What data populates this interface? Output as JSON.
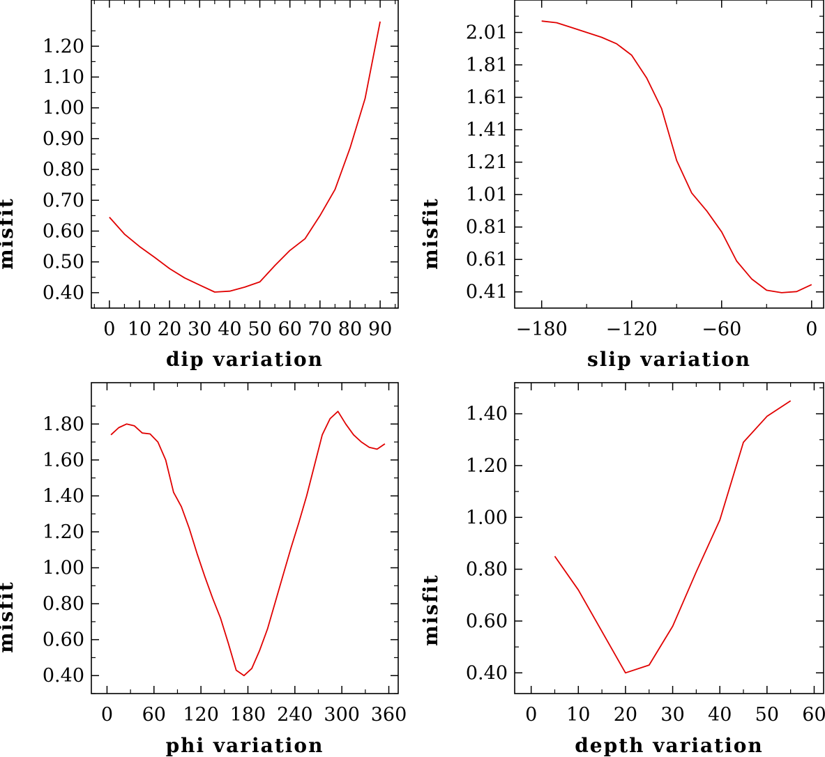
{
  "colors": {
    "line": "#e00000",
    "axis": "#000000",
    "background": "#ffffff"
  },
  "chart_data": [
    {
      "type": "line",
      "xlabel": "dip variation",
      "ylabel": "misfit",
      "xlim": [
        -6,
        96
      ],
      "ylim": [
        0.35,
        1.35
      ],
      "xticks": [
        0,
        10,
        20,
        30,
        40,
        50,
        60,
        70,
        80,
        90
      ],
      "xtick_labels": [
        "0",
        "10",
        "20",
        "30",
        "40",
        "50",
        "60",
        "70",
        "80",
        "90"
      ],
      "yticks": [
        0.4,
        0.5,
        0.6,
        0.7,
        0.8,
        0.9,
        1.0,
        1.1,
        1.2
      ],
      "ytick_labels": [
        "0.40",
        "0.50",
        "0.60",
        "0.70",
        "0.80",
        "0.90",
        "1.00",
        "1.10",
        "1.20"
      ],
      "x": [
        0,
        5,
        10,
        15,
        20,
        25,
        30,
        35,
        40,
        45,
        50,
        55,
        60,
        65,
        70,
        75,
        80,
        85,
        90
      ],
      "y": [
        0.645,
        0.59,
        0.55,
        0.515,
        0.478,
        0.448,
        0.425,
        0.402,
        0.405,
        0.418,
        0.435,
        0.488,
        0.537,
        0.575,
        0.65,
        0.735,
        0.87,
        1.03,
        1.28
      ]
    },
    {
      "type": "line",
      "xlabel": "slip variation",
      "ylabel": "misfit",
      "xlim": [
        -198,
        8
      ],
      "ylim": [
        0.31,
        2.21
      ],
      "xticks": [
        -180,
        -120,
        -60,
        0
      ],
      "xtick_labels": [
        "−180",
        "−120",
        "−60",
        "0"
      ],
      "yticks": [
        0.41,
        0.61,
        0.81,
        1.01,
        1.21,
        1.41,
        1.61,
        1.81,
        2.01
      ],
      "ytick_labels": [
        "0.41",
        "0.61",
        "0.81",
        "1.01",
        "1.21",
        "1.41",
        "1.61",
        "1.81",
        "2.01"
      ],
      "x": [
        -180,
        -170,
        -160,
        -150,
        -140,
        -130,
        -120,
        -110,
        -100,
        -90,
        -80,
        -70,
        -60,
        -50,
        -40,
        -30,
        -20,
        -10,
        0
      ],
      "y": [
        2.08,
        2.07,
        2.04,
        2.01,
        1.98,
        1.94,
        1.87,
        1.73,
        1.54,
        1.22,
        1.02,
        0.91,
        0.78,
        0.6,
        0.49,
        0.42,
        0.405,
        0.412,
        0.455
      ]
    },
    {
      "type": "line",
      "xlabel": "phi variation",
      "ylabel": "misfit",
      "xlim": [
        -20,
        372
      ],
      "ylim": [
        0.3,
        2.03
      ],
      "xticks": [
        0,
        60,
        120,
        180,
        240,
        300,
        360
      ],
      "xtick_labels": [
        "0",
        "60",
        "120",
        "180",
        "240",
        "300",
        "360"
      ],
      "yticks": [
        0.4,
        0.6,
        0.8,
        1.0,
        1.2,
        1.4,
        1.6,
        1.8
      ],
      "ytick_labels": [
        "0.40",
        "0.60",
        "0.80",
        "1.00",
        "1.20",
        "1.40",
        "1.60",
        "1.80"
      ],
      "x": [
        5,
        15,
        25,
        35,
        45,
        55,
        65,
        75,
        85,
        95,
        105,
        115,
        125,
        135,
        145,
        155,
        165,
        175,
        185,
        195,
        205,
        215,
        225,
        235,
        245,
        255,
        265,
        275,
        285,
        295,
        305,
        315,
        325,
        335,
        345,
        355
      ],
      "y": [
        1.74,
        1.78,
        1.8,
        1.79,
        1.75,
        1.745,
        1.7,
        1.6,
        1.42,
        1.34,
        1.22,
        1.08,
        0.95,
        0.83,
        0.72,
        0.58,
        0.43,
        0.4,
        0.44,
        0.54,
        0.66,
        0.81,
        0.96,
        1.11,
        1.25,
        1.4,
        1.57,
        1.74,
        1.83,
        1.87,
        1.8,
        1.74,
        1.7,
        1.67,
        1.66,
        1.69
      ]
    },
    {
      "type": "line",
      "xlabel": "depth variation",
      "ylabel": "misfit",
      "xlim": [
        -3.5,
        62
      ],
      "ylim": [
        0.32,
        1.52
      ],
      "xticks": [
        0,
        10,
        20,
        30,
        40,
        50,
        60
      ],
      "xtick_labels": [
        "0",
        "10",
        "20",
        "30",
        "40",
        "50",
        "60"
      ],
      "yticks": [
        0.4,
        0.6,
        0.8,
        1.0,
        1.2,
        1.4
      ],
      "ytick_labels": [
        "0.40",
        "0.60",
        "0.80",
        "1.00",
        "1.20",
        "1.40"
      ],
      "x": [
        5,
        10,
        15,
        20,
        25,
        30,
        35,
        40,
        45,
        50,
        55
      ],
      "y": [
        0.85,
        0.72,
        0.56,
        0.4,
        0.43,
        0.58,
        0.79,
        0.99,
        1.29,
        1.39,
        1.45
      ]
    }
  ]
}
